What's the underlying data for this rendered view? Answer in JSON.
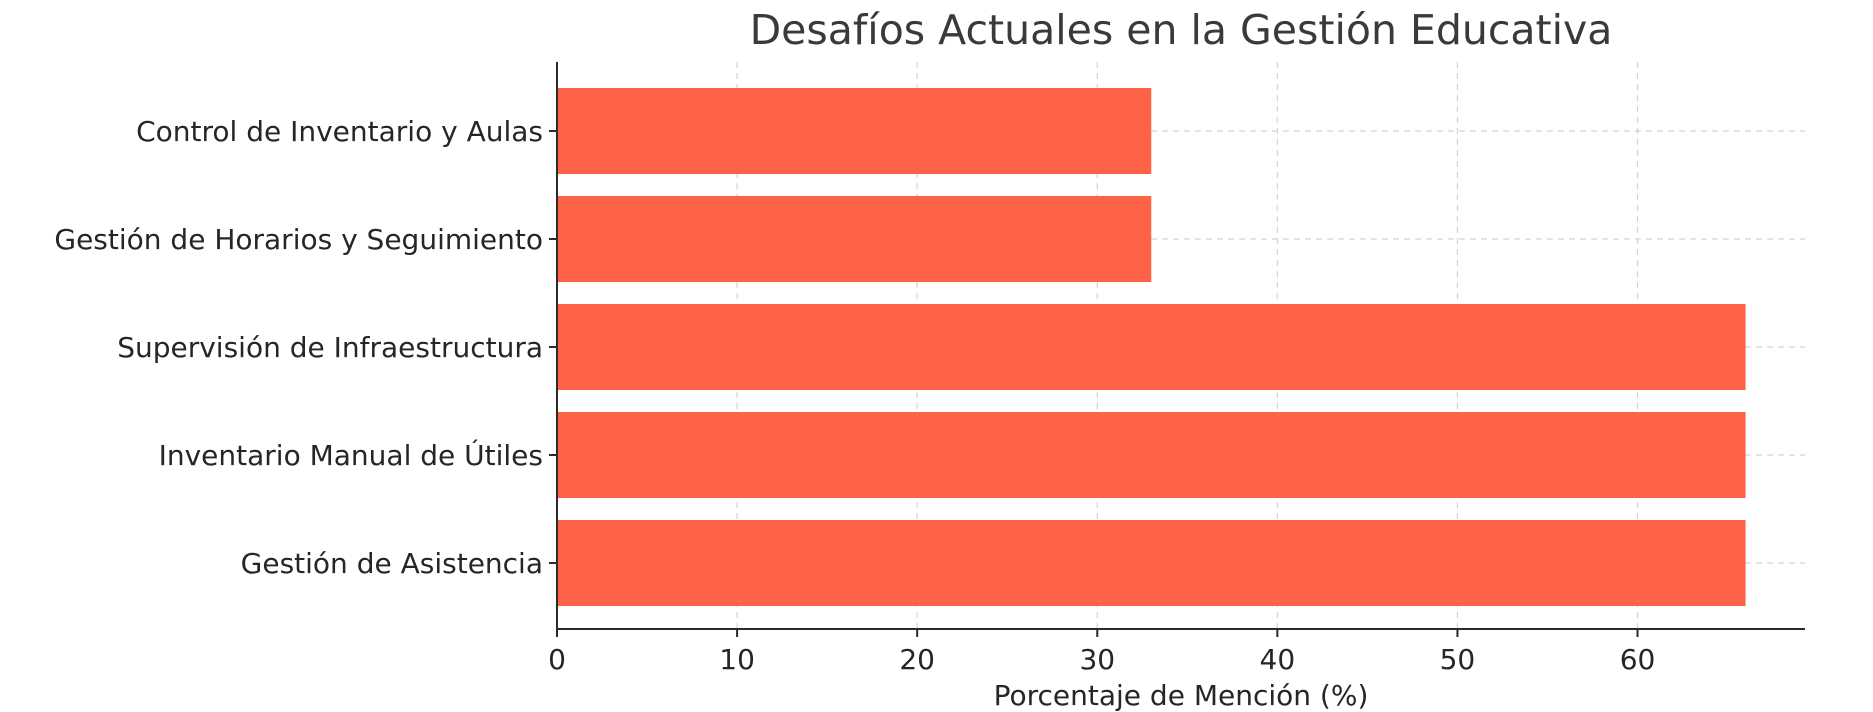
{
  "chart_data": {
    "type": "bar",
    "orientation": "horizontal",
    "title": "Desafíos Actuales en la Gestión Educativa",
    "xlabel": "Porcentaje de Mención (%)",
    "ylabel": "",
    "categories": [
      "Control de Inventario y Aulas",
      "Gestión de Horarios y Seguimiento",
      "Supervisión de Infraestructura",
      "Inventario Manual de Útiles",
      "Gestión de Asistencia"
    ],
    "values": [
      33,
      33,
      66,
      66,
      66
    ],
    "xlim": [
      0,
      69.3
    ],
    "xticks": [
      0,
      10,
      20,
      30,
      40,
      50,
      60
    ],
    "grid": true,
    "legend": "none",
    "bar_color": "#ff6347"
  }
}
